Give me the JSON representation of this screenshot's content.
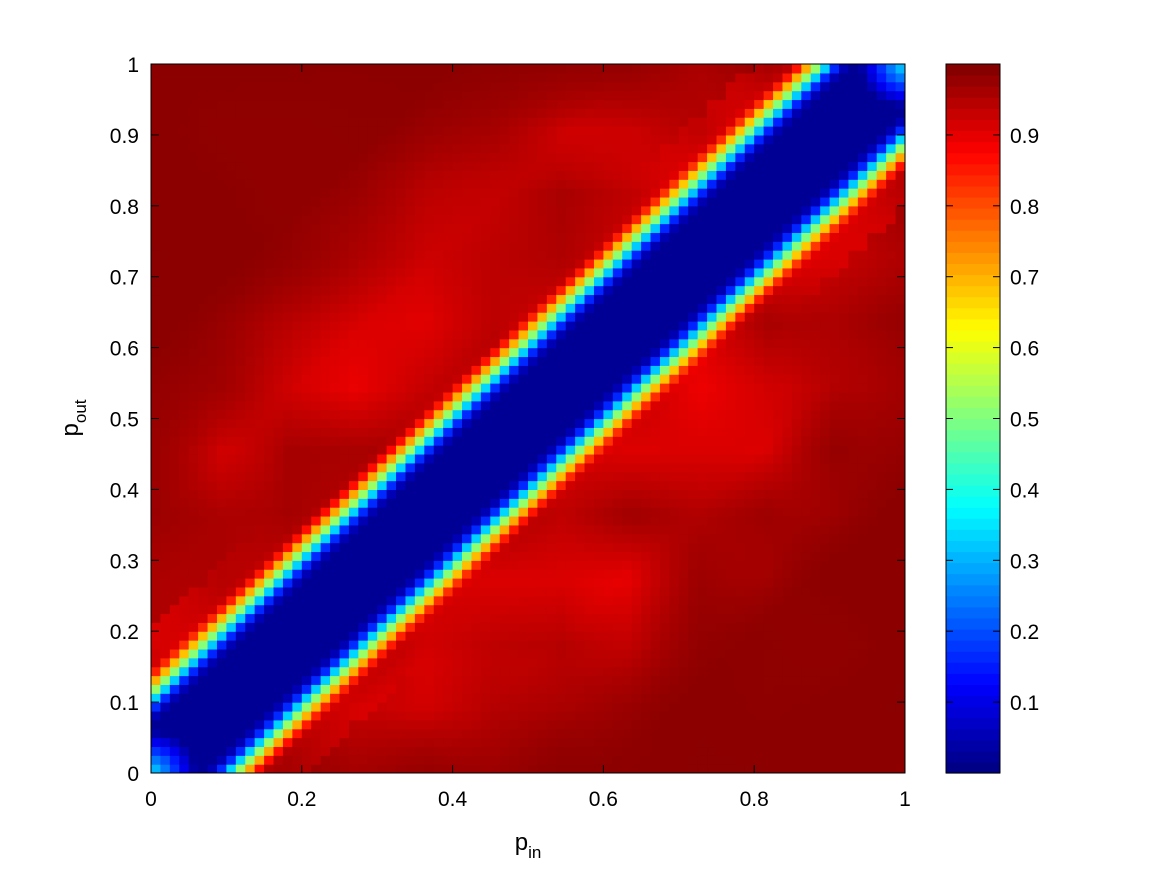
{
  "chart_data": {
    "type": "heatmap",
    "title": "",
    "xlabel": {
      "base": "p",
      "subscript": "in"
    },
    "ylabel": {
      "base": "p",
      "subscript": "out"
    },
    "xlim": [
      0,
      1
    ],
    "ylim": [
      0,
      1
    ],
    "xticks": [
      "0",
      "0.2",
      "0.4",
      "0.6",
      "0.8",
      "1"
    ],
    "yticks": [
      "0",
      "0.1",
      "0.2",
      "0.3",
      "0.4",
      "0.5",
      "0.6",
      "0.7",
      "0.8",
      "0.9",
      "1"
    ],
    "colormap": "jet",
    "clim": [
      0,
      1
    ],
    "colorbar": {
      "placement": "right",
      "ticks": [
        "0.1",
        "0.2",
        "0.3",
        "0.4",
        "0.5",
        "0.6",
        "0.7",
        "0.8",
        "0.9"
      ]
    },
    "x": [
      0,
      0.05,
      0.1,
      0.15,
      0.2,
      0.25,
      0.3,
      0.35,
      0.4,
      0.45,
      0.5,
      0.55,
      0.6,
      0.65,
      0.7,
      0.75,
      0.8,
      0.85,
      0.9,
      0.95,
      1
    ],
    "y": [
      0,
      0.05,
      0.1,
      0.15,
      0.2,
      0.25,
      0.3,
      0.35,
      0.4,
      0.45,
      0.5,
      0.55,
      0.6,
      0.65,
      0.7,
      0.75,
      0.8,
      0.85,
      0.9,
      0.95,
      1
    ],
    "z_description_values": {
      "diagonal_min": 0.02,
      "corner_values": {
        "bottom_left": 0.35,
        "top_right": 0.35
      },
      "off_diagonal_plateau": 0.93,
      "far_corner_max": 0.99
    },
    "grid": false,
    "legend": "none"
  }
}
